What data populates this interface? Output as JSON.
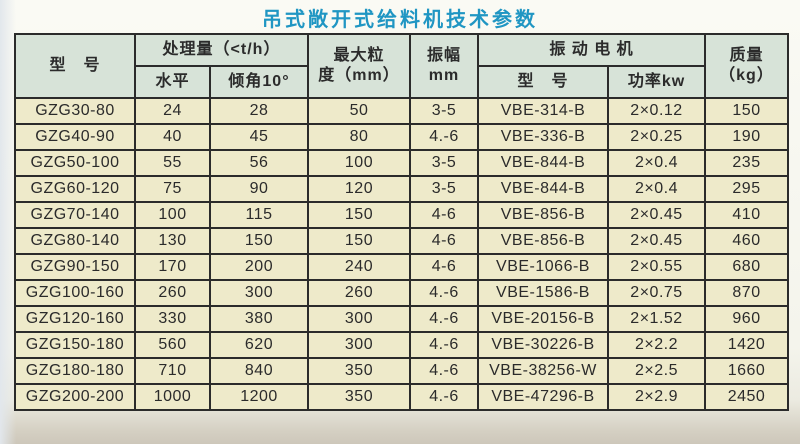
{
  "page": {
    "title": "吊式敞开式给料机技术参数"
  },
  "colors": {
    "title": "#2096c3",
    "header_bg": "#d7e3d8",
    "cell_bg": "#eeeaca",
    "border": "#2b2b2b",
    "text": "#2b2b2b",
    "page_top": "#fafaf4",
    "page_bottom": "#d5d0c3",
    "edge_left": "#e2e7ec"
  },
  "table": {
    "headers": {
      "model": "型　号",
      "capacity_group": "处理量（<t/h）",
      "capacity_horizontal": "水平",
      "capacity_incline": "倾角10°",
      "max_particle": "最大粒\n度（mm）",
      "amplitude": "振幅\nmm",
      "motor_group": "振 动 电 机",
      "motor_model": "型　号",
      "motor_power": "功率kw",
      "mass": "质量\n（kg）"
    },
    "rows": [
      [
        "GZG30-80",
        "24",
        "28",
        "50",
        "3-5",
        "VBE-314-B",
        "2×0.12",
        "150"
      ],
      [
        "GZG40-90",
        "40",
        "45",
        "80",
        "4.-6",
        "VBE-336-B",
        "2×0.25",
        "190"
      ],
      [
        "GZG50-100",
        "55",
        "56",
        "100",
        "3-5",
        "VBE-844-B",
        "2×0.4",
        "235"
      ],
      [
        "GZG60-120",
        "75",
        "90",
        "120",
        "3-5",
        "VBE-844-B",
        "2×0.4",
        "295"
      ],
      [
        "GZG70-140",
        "100",
        "115",
        "150",
        "4-6",
        "VBE-856-B",
        "2×0.45",
        "410"
      ],
      [
        "GZG80-140",
        "130",
        "150",
        "150",
        "4-6",
        "VBE-856-B",
        "2×0.45",
        "460"
      ],
      [
        "GZG90-150",
        "170",
        "200",
        "240",
        "4-6",
        "VBE-1066-B",
        "2×0.55",
        "680"
      ],
      [
        "GZG100-160",
        "260",
        "300",
        "260",
        "4.-6",
        "VBE-1586-B",
        "2×0.75",
        "870"
      ],
      [
        "GZG120-160",
        "330",
        "380",
        "300",
        "4.-6",
        "VBE-20156-B",
        "2×1.52",
        "960"
      ],
      [
        "GZG150-180",
        "560",
        "620",
        "300",
        "4.-6",
        "VBE-30226-B",
        "2×2.2",
        "1420"
      ],
      [
        "GZG180-180",
        "710",
        "840",
        "350",
        "4.-6",
        "VBE-38256-W",
        "2×2.5",
        "1660"
      ],
      [
        "GZG200-200",
        "1000",
        "1200",
        "350",
        "4.-6",
        "VBE-47296-B",
        "2×2.9",
        "2450"
      ]
    ]
  }
}
